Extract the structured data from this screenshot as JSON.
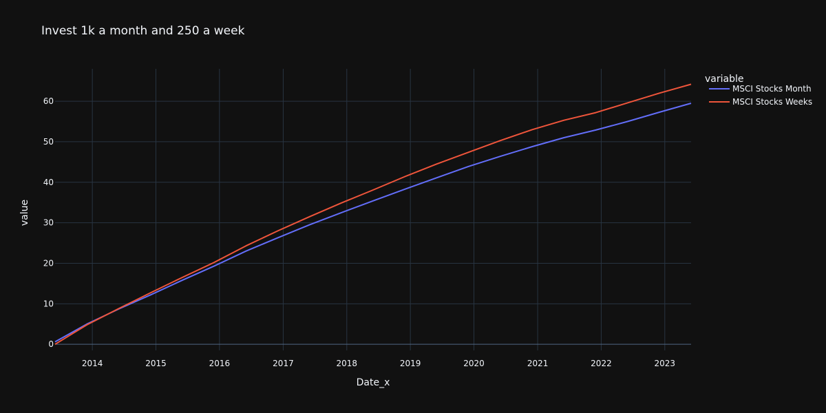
{
  "chart_data": {
    "type": "line",
    "title": "Invest 1k a month and 250 a week",
    "xlabel": "Date_x",
    "ylabel": "value",
    "x_ticks": [
      "2014",
      "2015",
      "2016",
      "2017",
      "2018",
      "2019",
      "2020",
      "2021",
      "2022",
      "2023"
    ],
    "y_ticks": [
      "0",
      "10",
      "20",
      "30",
      "40",
      "50",
      "60"
    ],
    "xlim": [
      "2013-06-01",
      "2023-06-01"
    ],
    "ylim": [
      -1.5,
      68
    ],
    "grid": true,
    "legend": {
      "title": "variable",
      "position": "right"
    },
    "series": [
      {
        "name": "MSCI Stocks Month",
        "color": "#636efa",
        "points": [
          [
            "2013-06-01",
            0.6
          ],
          [
            "2013-12-01",
            5.0
          ],
          [
            "2014-06-01",
            8.7
          ],
          [
            "2014-12-01",
            12.2
          ],
          [
            "2015-06-01",
            15.8
          ],
          [
            "2015-12-01",
            19.3
          ],
          [
            "2016-06-01",
            23.0
          ],
          [
            "2016-12-01",
            26.3
          ],
          [
            "2017-06-01",
            29.5
          ],
          [
            "2017-12-01",
            32.5
          ],
          [
            "2018-06-01",
            35.4
          ],
          [
            "2018-12-01",
            38.3
          ],
          [
            "2019-06-01",
            41.1
          ],
          [
            "2019-12-01",
            43.9
          ],
          [
            "2020-06-01",
            46.4
          ],
          [
            "2020-12-01",
            48.8
          ],
          [
            "2021-06-01",
            51.0
          ],
          [
            "2021-12-01",
            52.9
          ],
          [
            "2022-06-01",
            55.0
          ],
          [
            "2022-12-01",
            57.3
          ],
          [
            "2023-06-01",
            59.5
          ]
        ]
      },
      {
        "name": "MSCI Stocks Weeks",
        "color": "#ef553b",
        "points": [
          [
            "2013-06-01",
            0.0
          ],
          [
            "2013-12-01",
            4.8
          ],
          [
            "2014-06-01",
            8.8
          ],
          [
            "2014-12-01",
            12.7
          ],
          [
            "2015-06-01",
            16.5
          ],
          [
            "2015-12-01",
            20.2
          ],
          [
            "2016-06-01",
            24.3
          ],
          [
            "2016-12-01",
            28.0
          ],
          [
            "2017-06-01",
            31.5
          ],
          [
            "2017-12-01",
            34.9
          ],
          [
            "2018-06-01",
            38.1
          ],
          [
            "2018-12-01",
            41.4
          ],
          [
            "2019-06-01",
            44.5
          ],
          [
            "2019-12-01",
            47.4
          ],
          [
            "2020-06-01",
            50.3
          ],
          [
            "2020-12-01",
            53.0
          ],
          [
            "2021-06-01",
            55.3
          ],
          [
            "2021-12-01",
            57.2
          ],
          [
            "2022-06-01",
            59.6
          ],
          [
            "2022-12-01",
            62.0
          ],
          [
            "2023-06-01",
            64.2
          ]
        ]
      }
    ]
  }
}
